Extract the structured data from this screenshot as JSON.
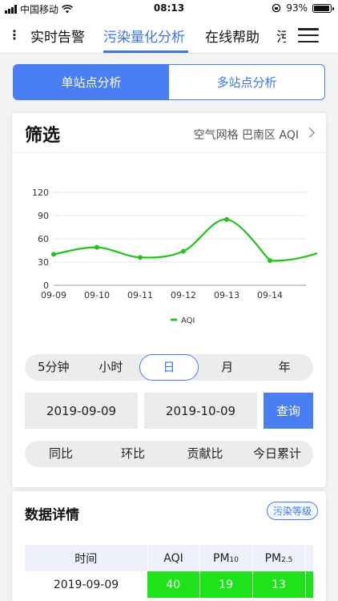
{
  "status_bar": {
    "carrier": "中国移动",
    "time": "08:13",
    "battery": "93%",
    "battery_level": 0.93
  },
  "top_nav": {
    "tabs": [
      {
        "label": "实时告警"
      },
      {
        "label": "污染量化分析",
        "active": true
      },
      {
        "label": "在线帮助"
      },
      {
        "label": "污"
      }
    ]
  },
  "mode_segment": {
    "options": [
      "单站点分析",
      "多站点分析"
    ],
    "selected": "单站点分析"
  },
  "filter_card": {
    "title": "筛选",
    "summary": "空气网格 巴南区  AQI"
  },
  "chart_data": {
    "type": "line",
    "x": [
      "09-09",
      "09-10",
      "09-11",
      "09-12",
      "09-13",
      "09-14"
    ],
    "series": [
      {
        "name": "AQI",
        "values": [
          40,
          49,
          36,
          44,
          85,
          32
        ],
        "color": "#22c41a"
      }
    ],
    "y_ticks": [
      "0",
      "30",
      "60",
      "90",
      "120"
    ],
    "ylim": [
      0,
      120
    ],
    "legend": "bottom-center",
    "grid": true
  },
  "period_options": [
    "5分钟",
    "小时",
    "日",
    "月",
    "年"
  ],
  "period_selected": "日",
  "date_range": {
    "start": "2019-09-09",
    "end": "2019-10-09"
  },
  "query_label": "查询",
  "compare_options": [
    "同比",
    "环比",
    "贡献比",
    "今日累计"
  ],
  "detail_card": {
    "title": "数据详情",
    "badge": "污染等级",
    "columns": {
      "time": "时间",
      "aqi": "AQI",
      "pm10_main": "PM",
      "pm10_sub": "10",
      "pm25_main": "PM",
      "pm25_sub": "2.5"
    },
    "rows": [
      {
        "time": "2019-09-09",
        "aqi": "40",
        "pm10": "19",
        "pm25": "13"
      }
    ]
  },
  "colors": {
    "accent": "#4a7ef3",
    "good_level": "#1ee31a",
    "line": "#22c41a"
  }
}
